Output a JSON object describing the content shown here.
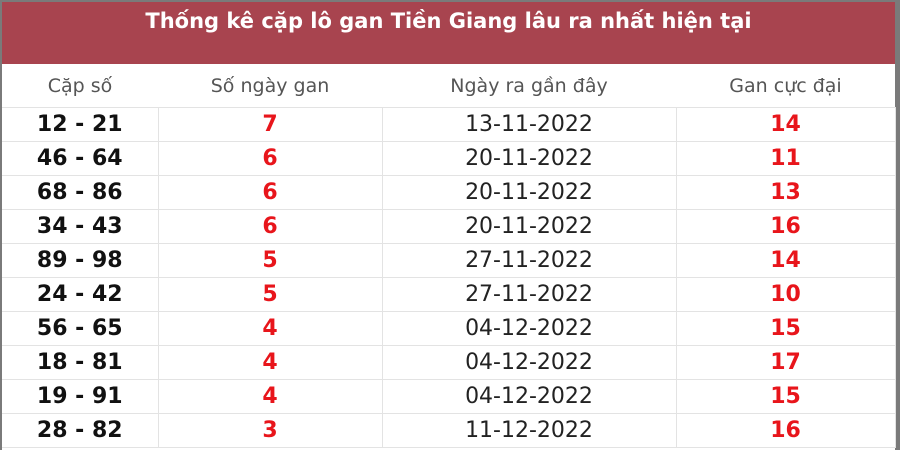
{
  "title": "Thống kê cặp lô gan Tiền Giang lâu ra nhất hiện tại",
  "columns": [
    "Cặp số",
    "Số ngày gan",
    "Ngày ra gần đây",
    "Gan cực đại"
  ],
  "colors": {
    "header_bg": "#a8444f",
    "highlight": "#e8151b"
  },
  "rows": [
    {
      "pair": "12 - 21",
      "days": "7",
      "last": "13-11-2022",
      "max": "14"
    },
    {
      "pair": "46 - 64",
      "days": "6",
      "last": "20-11-2022",
      "max": "11"
    },
    {
      "pair": "68 - 86",
      "days": "6",
      "last": "20-11-2022",
      "max": "13"
    },
    {
      "pair": "34 - 43",
      "days": "6",
      "last": "20-11-2022",
      "max": "16"
    },
    {
      "pair": "89 - 98",
      "days": "5",
      "last": "27-11-2022",
      "max": "14"
    },
    {
      "pair": "24 - 42",
      "days": "5",
      "last": "27-11-2022",
      "max": "10"
    },
    {
      "pair": "56 - 65",
      "days": "4",
      "last": "04-12-2022",
      "max": "15"
    },
    {
      "pair": "18 - 81",
      "days": "4",
      "last": "04-12-2022",
      "max": "17"
    },
    {
      "pair": "19 - 91",
      "days": "4",
      "last": "04-12-2022",
      "max": "15"
    },
    {
      "pair": "28 - 82",
      "days": "3",
      "last": "11-12-2022",
      "max": "16"
    }
  ]
}
